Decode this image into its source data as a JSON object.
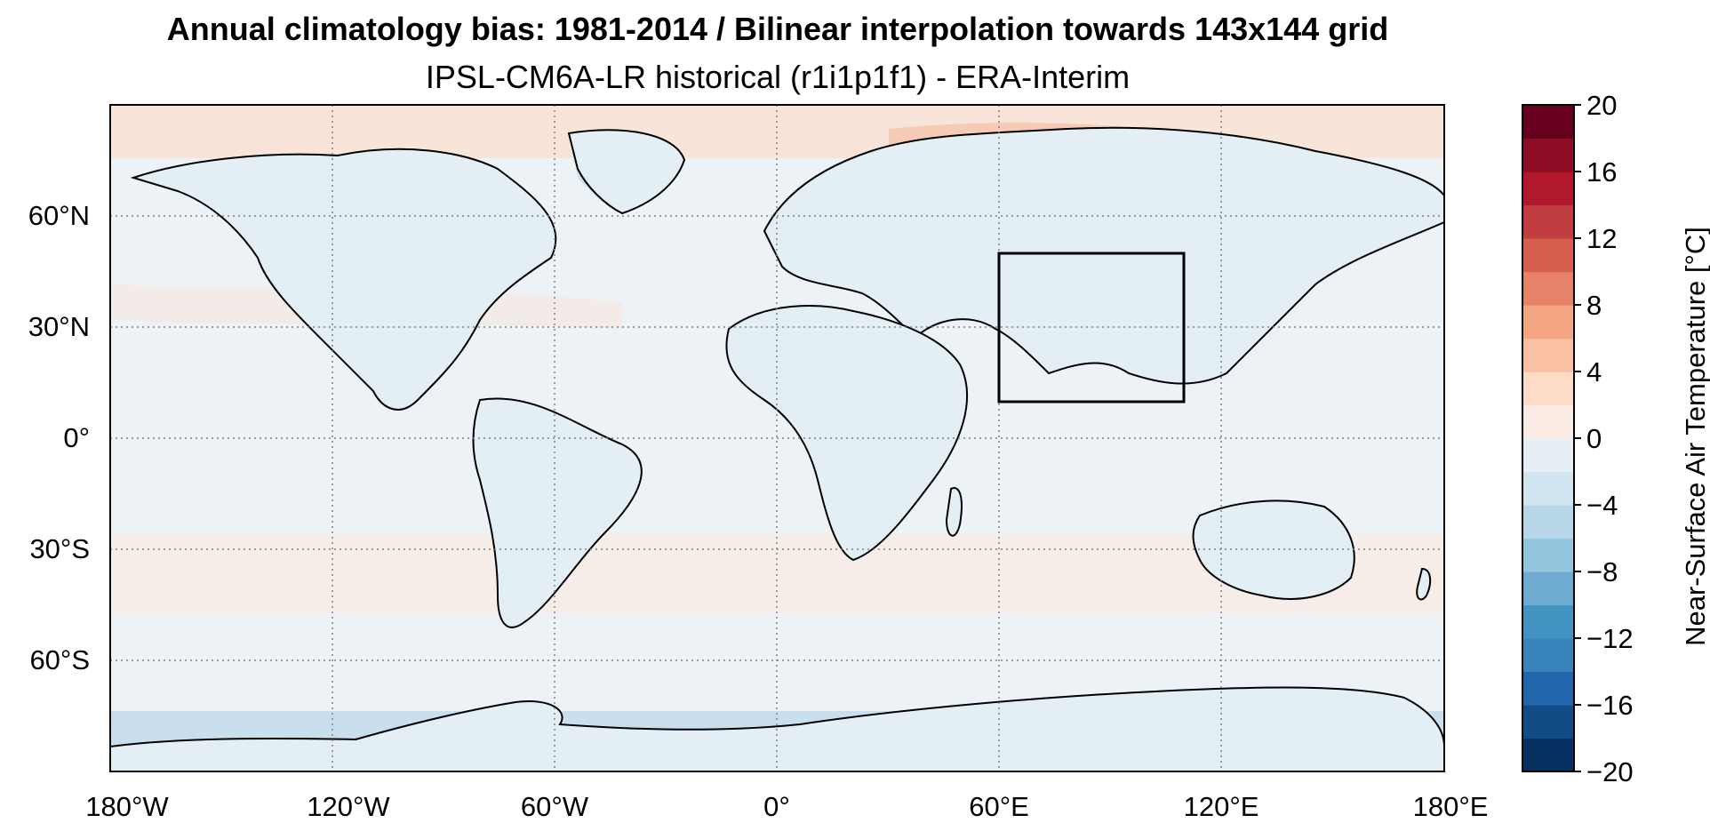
{
  "title": "Annual climatology bias: 1981-2014 / Bilinear interpolation towards 143x144 grid",
  "subtitle": "IPSL-CM6A-LR historical (r1i1p1f1) - ERA-Interim",
  "map": {
    "lon_ticks": [
      "180°W",
      "120°W",
      "60°W",
      "0°",
      "60°E",
      "120°E",
      "180°E"
    ],
    "lat_ticks": [
      "60°N",
      "30°N",
      "0°",
      "30°S",
      "60°S"
    ],
    "region_box": {
      "lon": [
        60,
        110
      ],
      "lat": [
        10,
        50
      ]
    },
    "colors": {
      "ocean_bias": "#edf2f6",
      "warm_bias": "#f9e4da",
      "cool_bias": "#d3e4f0",
      "coastline": "#000000",
      "gridline": "#808080"
    }
  },
  "colorbar": {
    "label": "Near-Surface Air Temperature [°C]",
    "ticks": [
      "20",
      "16",
      "12",
      "8",
      "4",
      "0",
      "−4",
      "−8",
      "−12",
      "−16",
      "−20"
    ],
    "range": [
      -20,
      20
    ],
    "colors": [
      "#053061",
      "#134b87",
      "#2166ac",
      "#3884bb",
      "#4393c3",
      "#6fabd0",
      "#92c5de",
      "#b7d7e8",
      "#d1e5f0",
      "#e6eff4",
      "#f9ebe4",
      "#fddbc7",
      "#f9c0a4",
      "#f4a582",
      "#e58267",
      "#d6604d",
      "#c23d3f",
      "#b2182b",
      "#8c0d25",
      "#67001f"
    ]
  }
}
